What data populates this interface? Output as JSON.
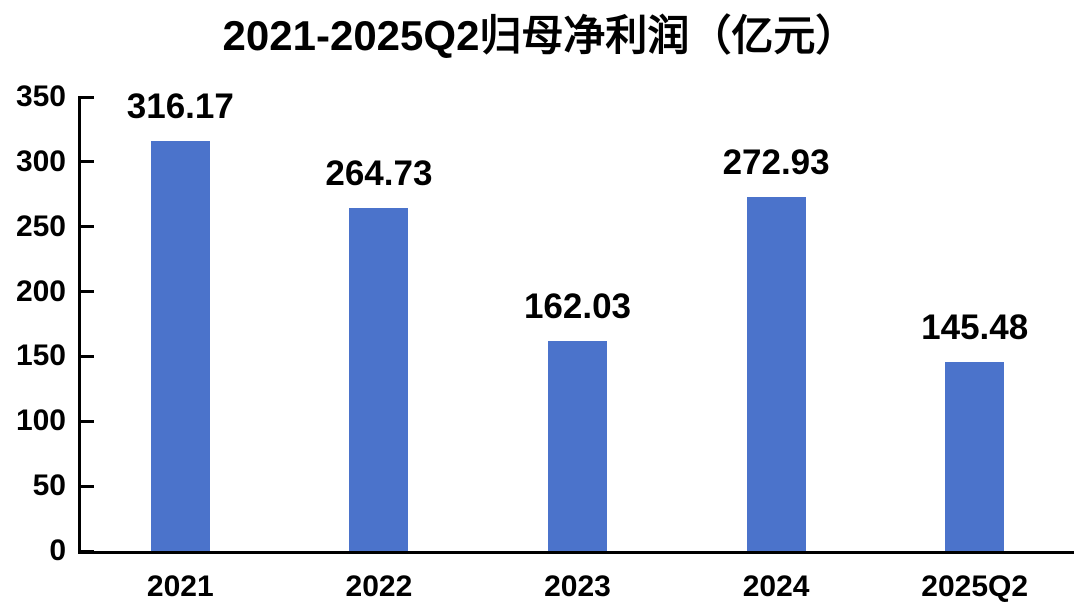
{
  "page": {
    "background": "#ffffff"
  },
  "chart_data": {
    "type": "bar",
    "title": "2021-2025Q2归母净利润（亿元）",
    "categories": [
      "2021",
      "2022",
      "2023",
      "2024",
      "2025Q2"
    ],
    "values": [
      316.17,
      264.73,
      162.03,
      272.93,
      145.48
    ],
    "value_labels": [
      "316.17",
      "264.73",
      "162.03",
      "272.93",
      "145.48"
    ],
    "xlabel": "",
    "ylabel": "",
    "ylim": [
      0,
      350
    ],
    "yticks": [
      0,
      50,
      100,
      150,
      200,
      250,
      300,
      350
    ],
    "grid": false,
    "legend": "none",
    "bar_color": "#4B73CB",
    "axis_color": "#000000",
    "text_color": "#000000"
  }
}
